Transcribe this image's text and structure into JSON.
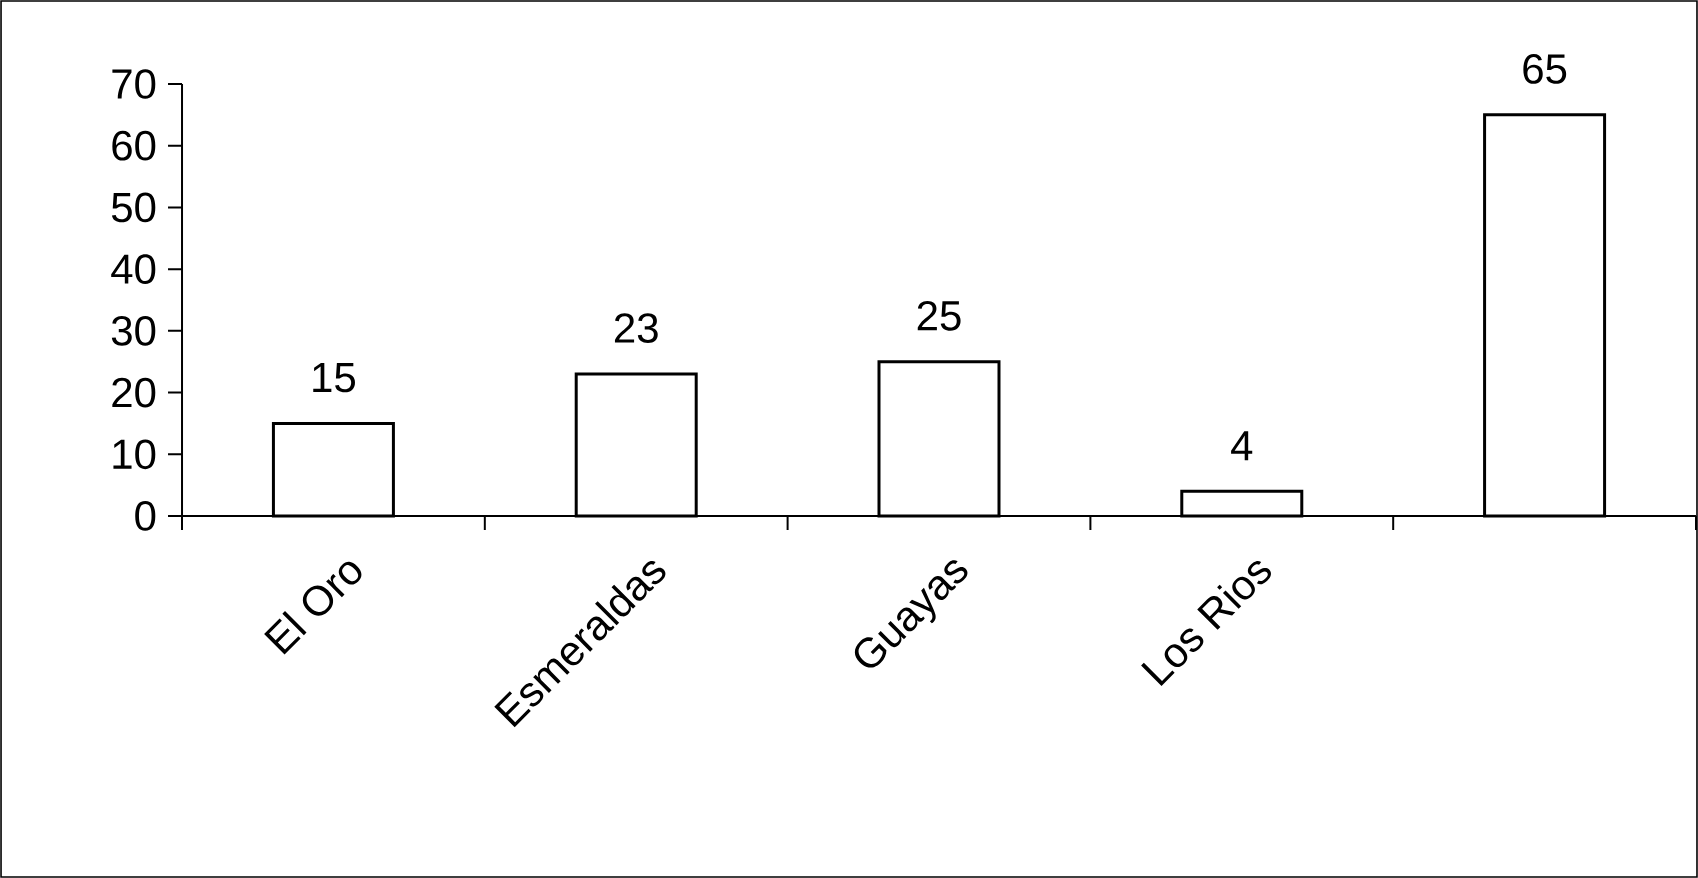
{
  "chart_data": {
    "type": "bar",
    "categories": [
      "El Oro",
      "Esmeraldas",
      "Guayas",
      "Los Rios",
      null
    ],
    "values": [
      15,
      23,
      25,
      4,
      65
    ],
    "color": "#ffffff",
    "ylim": [
      0,
      70
    ],
    "yticks": [
      0,
      10,
      20,
      30,
      40,
      50,
      60,
      70
    ],
    "data_labels": true
  }
}
